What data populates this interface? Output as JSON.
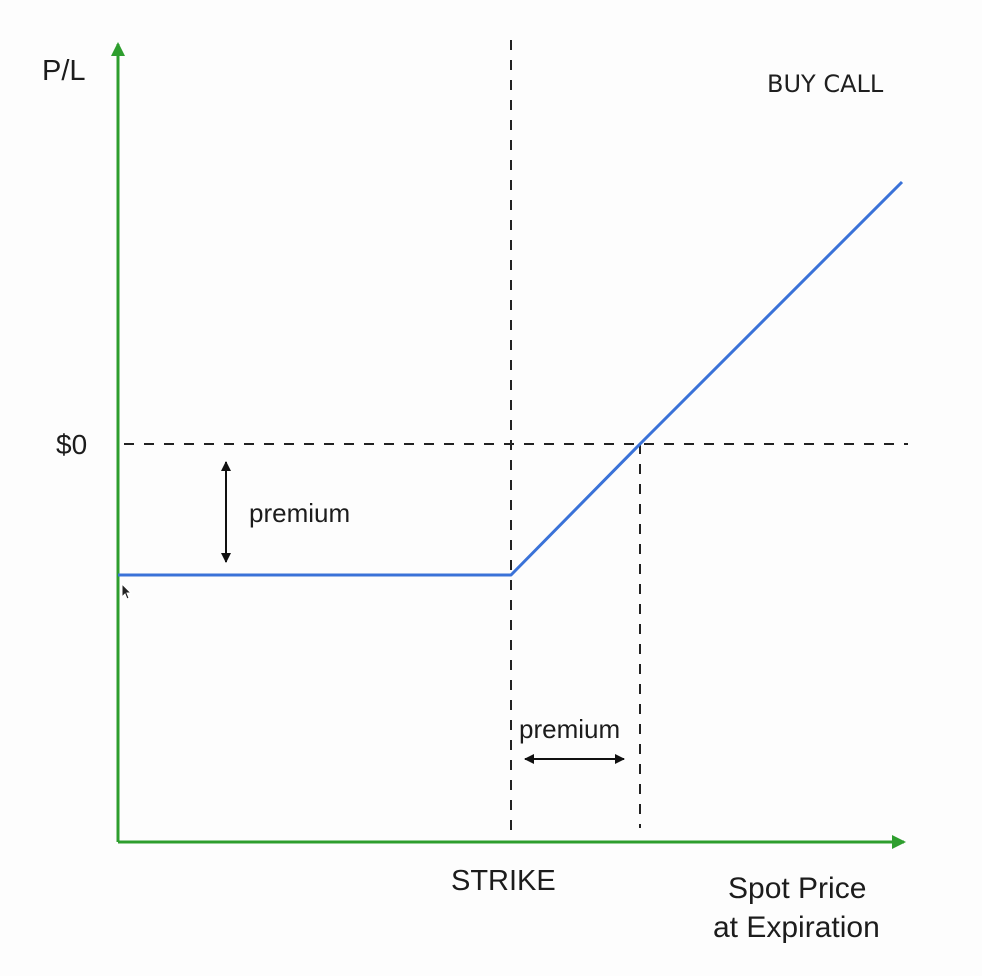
{
  "diagram": {
    "title": "BUY CALL",
    "y_axis_label": "P/L",
    "zero_label": "$0",
    "strike_label": "STRIKE",
    "x_axis_label_line1": "Spot Price",
    "x_axis_label_line2": "at Expiration",
    "premium_vertical_label": "premium",
    "premium_horizontal_label": "premium"
  },
  "colors": {
    "axis": "#2e9e2e",
    "payoff": "#3a72d8",
    "guide": "#222222",
    "text": "#1c1c1c"
  }
}
